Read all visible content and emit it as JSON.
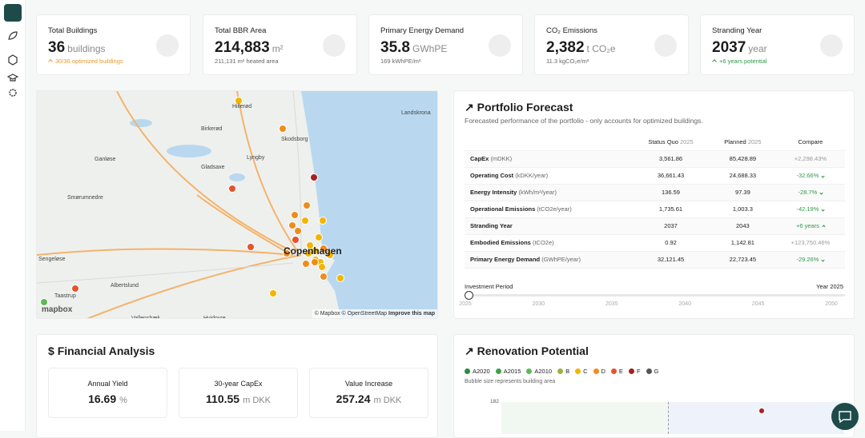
{
  "kpis": [
    {
      "label": "Total Buildings",
      "value": "36",
      "unit": "buildings",
      "sub": "30/36 optimized buildings",
      "tone": "warn"
    },
    {
      "label": "Total BBR Area",
      "value": "214,883",
      "unit": "m²",
      "sub": "211,131 m² heated area",
      "tone": "plain"
    },
    {
      "label": "Primary Energy Demand",
      "value": "35.8",
      "unit": "GWhPE",
      "sub": "169 kWhPE/m²",
      "tone": "plain"
    },
    {
      "label": "CO₂ Emissions",
      "value": "2,382",
      "unit": "t CO₂e",
      "sub": "11.3 kgCO₂e/m²",
      "tone": "plain"
    },
    {
      "label": "Stranding Year",
      "value": "2037",
      "unit": "year",
      "sub": "+6 years potential",
      "tone": "good"
    }
  ],
  "map": {
    "labels": [
      "Hillerød",
      "Birkerød",
      "Lyngby",
      "Gladsaxe",
      "Ganløse",
      "Smørumnedre",
      "Sengeløse",
      "Taastrup",
      "Albertslund",
      "Hvidovre",
      "Skodsborg",
      "Landskrona",
      "Copenhagen",
      "Vallensbæk"
    ],
    "attribution": "© Mapbox © OpenStreetMap",
    "improve": "Improve this map",
    "logo": "mapbox"
  },
  "forecast": {
    "title": "Portfolio Forecast",
    "subtitle": "Forecasted performance of the portfolio - only accounts for optimized buildings.",
    "headers": {
      "status": "Status Quo",
      "status_year": "2025",
      "planned": "Planned",
      "planned_year": "2025",
      "compare": "Compare"
    },
    "rows": [
      {
        "name": "CapEx",
        "unit": "(mDKK)",
        "status": "3,561.86",
        "planned": "85,428.89",
        "compare": "+2,298.43%",
        "trend": "neutral"
      },
      {
        "name": "Operating Cost",
        "unit": "(kDKK/year)",
        "status": "36,661.43",
        "planned": "24,688.33",
        "compare": "-32.66%",
        "trend": "down"
      },
      {
        "name": "Energy Intensity",
        "unit": "(kWh/m²/year)",
        "status": "136.59",
        "planned": "97.39",
        "compare": "-28.7%",
        "trend": "down"
      },
      {
        "name": "Operational Emissions",
        "unit": "(tCO2e/year)",
        "status": "1,735.61",
        "planned": "1,003.3",
        "compare": "-42.19%",
        "trend": "down"
      },
      {
        "name": "Stranding Year",
        "unit": "",
        "status": "2037",
        "planned": "2043",
        "compare": "+6 years",
        "trend": "up"
      },
      {
        "name": "Embodied Emissions",
        "unit": "(tCO2e)",
        "status": "0.92",
        "planned": "1,142.81",
        "compare": "+123,750.46%",
        "trend": "neutral"
      },
      {
        "name": "Primary Energy Demand",
        "unit": "(GWhPE/year)",
        "status": "32,121.45",
        "planned": "22,723.45",
        "compare": "-29.26%",
        "trend": "down"
      }
    ],
    "slider": {
      "label": "Investment Period",
      "current": "Year 2025",
      "ticks": [
        "2025",
        "2030",
        "2035",
        "2040",
        "2045",
        "2050"
      ]
    }
  },
  "financial": {
    "title": "Financial Analysis",
    "cards": [
      {
        "label": "Annual Yield",
        "value": "16.69",
        "unit": "%"
      },
      {
        "label": "30-year CapEx",
        "value": "110.55",
        "unit": "m DKK"
      },
      {
        "label": "Value Increase",
        "value": "257.24",
        "unit": "m DKK"
      }
    ]
  },
  "renovation": {
    "title": "Renovation Potential",
    "legend": [
      {
        "name": "A2020",
        "color": "#2e8b3e"
      },
      {
        "name": "A2015",
        "color": "#3fa14a"
      },
      {
        "name": "A2010",
        "color": "#5fb85a"
      },
      {
        "name": "B",
        "color": "#9bb23c"
      },
      {
        "name": "C",
        "color": "#f2b500"
      },
      {
        "name": "D",
        "color": "#f08c1a"
      },
      {
        "name": "E",
        "color": "#e5532b"
      },
      {
        "name": "F",
        "color": "#a8201c"
      },
      {
        "name": "G",
        "color": "#555555"
      }
    ],
    "note": "Bubble size represents building area",
    "ytick": "182"
  }
}
